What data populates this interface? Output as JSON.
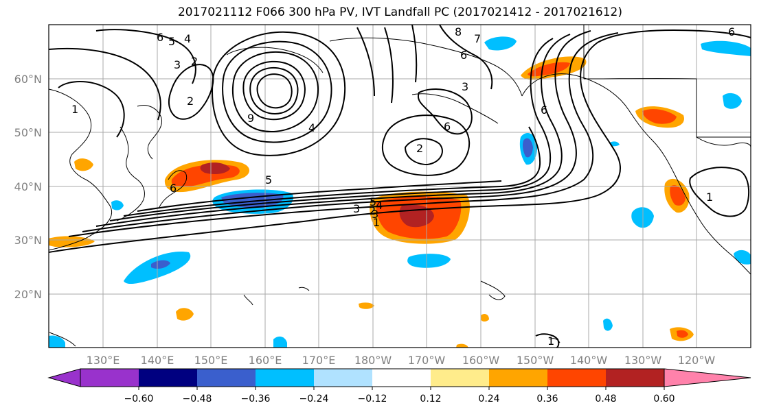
{
  "title": "2017021112 F066 300 hPa PV, IVT Landfall PC (2017021412 - 2017021612)",
  "map": {
    "lon_range": [
      120,
      250
    ],
    "lat_range": [
      10,
      70
    ],
    "lon_ticks": [
      "130°E",
      "140°E",
      "150°E",
      "160°E",
      "170°E",
      "180°W",
      "170°W",
      "160°W",
      "150°W",
      "140°W",
      "130°W",
      "120°W"
    ],
    "lat_ticks": [
      "20°N",
      "30°N",
      "40°N",
      "50°N",
      "60°N"
    ],
    "grid": true
  },
  "contour_labels": [
    "6",
    "5",
    "4",
    "3",
    "2",
    "1",
    "9",
    "4",
    "2",
    "6",
    "5",
    "3",
    "8",
    "7",
    "6",
    "3",
    "6",
    "6",
    "2",
    "5",
    "3",
    "4",
    "2",
    "1",
    "6",
    "1",
    "1"
  ],
  "colorbar": {
    "ticks": [
      "−0.60",
      "−0.48",
      "−0.36",
      "−0.24",
      "−0.12",
      "0.12",
      "0.24",
      "0.36",
      "0.48",
      "0.60"
    ],
    "colors": [
      "#9932cc",
      "#000080",
      "#3a5fcd",
      "#00bfff",
      "#b0e2ff",
      "#ffffff",
      "#ffec8b",
      "#ffa500",
      "#ff4500",
      "#b22222",
      "#ff82ab"
    ]
  }
}
